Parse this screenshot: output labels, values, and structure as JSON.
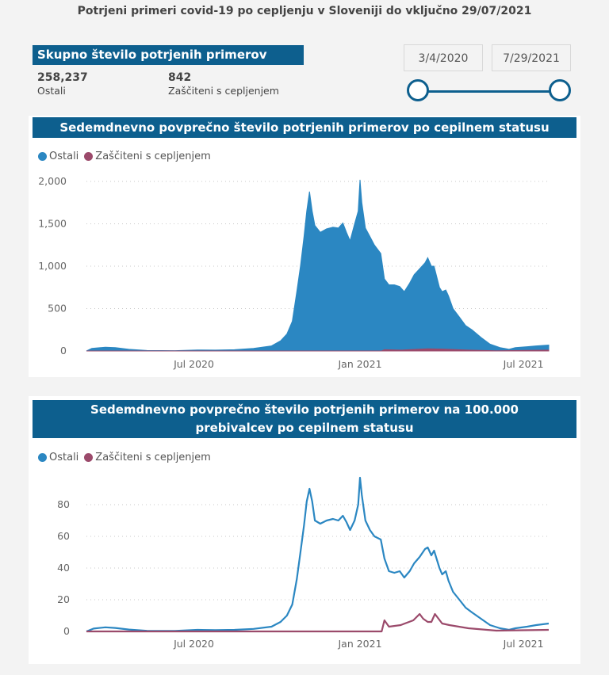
{
  "title": "Potrjeni primeri covid-19 po cepljenju v Sloveniji do vključno 29/07/2021",
  "kpis": {
    "header": "Skupno število potrjenih primerov",
    "ostali_value": "258,237",
    "ostali_label": "Ostali",
    "zasciteni_value": "842",
    "zasciteni_label": "Zaščiteni s cepljenjem"
  },
  "date_range": {
    "start": "3/4/2020",
    "end": "7/29/2021"
  },
  "colors": {
    "accent": "#0d5f8e",
    "ostali": "#2b87c2",
    "zasciteni": "#9b4a6b"
  },
  "legend": {
    "ostali": "Ostali",
    "zasciteni": "Zaščiteni s cepljenjem"
  },
  "chart_data": [
    {
      "type": "area",
      "title": "Sedemdnevno povprečno število potrjenih primerov po cepilnem statusu",
      "x_range": [
        "2020-03-04",
        "2021-07-29"
      ],
      "x_ticks": [
        "Jul 2020",
        "Jan 2021",
        "Jul 2021"
      ],
      "ylim": [
        0,
        2000
      ],
      "y_ticks": [
        "0",
        "500",
        "1,000",
        "1,500",
        "2,000"
      ],
      "y_tick_values": [
        0,
        500,
        1000,
        1500,
        2000
      ],
      "grid": true,
      "legend_position": "top-left",
      "series": [
        {
          "name": "Ostali",
          "points": [
            [
              "2020-03-04",
              0
            ],
            [
              "2020-03-10",
              30
            ],
            [
              "2020-03-25",
              45
            ],
            [
              "2020-04-05",
              40
            ],
            [
              "2020-04-20",
              20
            ],
            [
              "2020-05-10",
              6
            ],
            [
              "2020-06-10",
              4
            ],
            [
              "2020-07-05",
              12
            ],
            [
              "2020-07-25",
              10
            ],
            [
              "2020-08-15",
              15
            ],
            [
              "2020-09-05",
              30
            ],
            [
              "2020-09-25",
              60
            ],
            [
              "2020-10-05",
              120
            ],
            [
              "2020-10-12",
              200
            ],
            [
              "2020-10-18",
              350
            ],
            [
              "2020-10-23",
              700
            ],
            [
              "2020-10-27",
              1000
            ],
            [
              "2020-10-31",
              1350
            ],
            [
              "2020-11-03",
              1650
            ],
            [
              "2020-11-06",
              1880
            ],
            [
              "2020-11-09",
              1650
            ],
            [
              "2020-11-12",
              1480
            ],
            [
              "2020-11-18",
              1400
            ],
            [
              "2020-11-25",
              1440
            ],
            [
              "2020-12-02",
              1460
            ],
            [
              "2020-12-08",
              1450
            ],
            [
              "2020-12-13",
              1510
            ],
            [
              "2020-12-17",
              1400
            ],
            [
              "2020-12-21",
              1300
            ],
            [
              "2020-12-26",
              1500
            ],
            [
              "2020-12-30",
              1650
            ],
            [
              "2021-01-01",
              2020
            ],
            [
              "2021-01-03",
              1750
            ],
            [
              "2021-01-07",
              1450
            ],
            [
              "2021-01-12",
              1350
            ],
            [
              "2021-01-17",
              1250
            ],
            [
              "2021-01-24",
              1150
            ],
            [
              "2021-01-28",
              850
            ],
            [
              "2021-02-02",
              780
            ],
            [
              "2021-02-08",
              780
            ],
            [
              "2021-02-14",
              760
            ],
            [
              "2021-02-19",
              700
            ],
            [
              "2021-02-25",
              800
            ],
            [
              "2021-03-02",
              900
            ],
            [
              "2021-03-08",
              970
            ],
            [
              "2021-03-14",
              1040
            ],
            [
              "2021-03-17",
              1100
            ],
            [
              "2021-03-21",
              1000
            ],
            [
              "2021-03-24",
              1000
            ],
            [
              "2021-03-30",
              750
            ],
            [
              "2021-04-02",
              700
            ],
            [
              "2021-04-06",
              720
            ],
            [
              "2021-04-09",
              650
            ],
            [
              "2021-04-14",
              500
            ],
            [
              "2021-04-21",
              400
            ],
            [
              "2021-04-28",
              300
            ],
            [
              "2021-05-05",
              250
            ],
            [
              "2021-05-15",
              160
            ],
            [
              "2021-05-25",
              80
            ],
            [
              "2021-06-05",
              40
            ],
            [
              "2021-06-15",
              20
            ],
            [
              "2021-06-22",
              40
            ],
            [
              "2021-07-05",
              50
            ],
            [
              "2021-07-15",
              60
            ],
            [
              "2021-07-29",
              70
            ]
          ]
        },
        {
          "name": "Zaščiteni s cepljenjem",
          "points": [
            [
              "2020-03-04",
              0
            ],
            [
              "2021-01-25",
              0
            ],
            [
              "2021-01-28",
              15
            ],
            [
              "2021-02-15",
              10
            ],
            [
              "2021-03-17",
              25
            ],
            [
              "2021-04-02",
              22
            ],
            [
              "2021-05-01",
              10
            ],
            [
              "2021-06-01",
              2
            ],
            [
              "2021-07-29",
              10
            ]
          ]
        }
      ]
    },
    {
      "type": "line",
      "title": "Sedemdnevno povprečno število potrjenih primerov na 100.000 prebivalcev po cepilnem statusu",
      "x_range": [
        "2020-03-04",
        "2021-07-29"
      ],
      "x_ticks": [
        "Jul 2020",
        "Jan 2021",
        "Jul 2021"
      ],
      "ylim": [
        0,
        100
      ],
      "y_ticks": [
        "0",
        "20",
        "40",
        "60",
        "80"
      ],
      "y_tick_values": [
        0,
        20,
        40,
        60,
        80
      ],
      "grid": true,
      "legend_position": "top-left",
      "series": [
        {
          "name": "Ostali",
          "points": [
            [
              "2020-03-04",
              0
            ],
            [
              "2020-03-12",
              1.8
            ],
            [
              "2020-03-25",
              2.6
            ],
            [
              "2020-04-05",
              2.2
            ],
            [
              "2020-04-20",
              1.2
            ],
            [
              "2020-05-10",
              0.4
            ],
            [
              "2020-06-10",
              0.3
            ],
            [
              "2020-07-05",
              1.0
            ],
            [
              "2020-07-25",
              0.8
            ],
            [
              "2020-08-15",
              1.0
            ],
            [
              "2020-09-05",
              1.6
            ],
            [
              "2020-09-25",
              3
            ],
            [
              "2020-10-05",
              6
            ],
            [
              "2020-10-12",
              10
            ],
            [
              "2020-10-18",
              17
            ],
            [
              "2020-10-23",
              33
            ],
            [
              "2020-10-27",
              50
            ],
            [
              "2020-10-31",
              67
            ],
            [
              "2020-11-03",
              82
            ],
            [
              "2020-11-06",
              90
            ],
            [
              "2020-11-09",
              82
            ],
            [
              "2020-11-12",
              70
            ],
            [
              "2020-11-18",
              68
            ],
            [
              "2020-11-25",
              70
            ],
            [
              "2020-12-02",
              71
            ],
            [
              "2020-12-08",
              70
            ],
            [
              "2020-12-13",
              73
            ],
            [
              "2020-12-17",
              69
            ],
            [
              "2020-12-21",
              64
            ],
            [
              "2020-12-26",
              70
            ],
            [
              "2020-12-30",
              80
            ],
            [
              "2021-01-01",
              97
            ],
            [
              "2021-01-03",
              86
            ],
            [
              "2021-01-07",
              70
            ],
            [
              "2021-01-12",
              64
            ],
            [
              "2021-01-17",
              60
            ],
            [
              "2021-01-24",
              58
            ],
            [
              "2021-01-28",
              46
            ],
            [
              "2021-02-02",
              38
            ],
            [
              "2021-02-08",
              37
            ],
            [
              "2021-02-14",
              38
            ],
            [
              "2021-02-19",
              34
            ],
            [
              "2021-02-25",
              38
            ],
            [
              "2021-03-02",
              43
            ],
            [
              "2021-03-08",
              47
            ],
            [
              "2021-03-14",
              52
            ],
            [
              "2021-03-17",
              53
            ],
            [
              "2021-03-21",
              48
            ],
            [
              "2021-03-24",
              51
            ],
            [
              "2021-03-30",
              40
            ],
            [
              "2021-04-02",
              36
            ],
            [
              "2021-04-06",
              38
            ],
            [
              "2021-04-09",
              32
            ],
            [
              "2021-04-14",
              25
            ],
            [
              "2021-04-21",
              20
            ],
            [
              "2021-04-28",
              15
            ],
            [
              "2021-05-05",
              12
            ],
            [
              "2021-05-15",
              8
            ],
            [
              "2021-05-25",
              4
            ],
            [
              "2021-06-05",
              2
            ],
            [
              "2021-06-15",
              1
            ],
            [
              "2021-06-22",
              2
            ],
            [
              "2021-07-05",
              3
            ],
            [
              "2021-07-15",
              4
            ],
            [
              "2021-07-29",
              5
            ]
          ]
        },
        {
          "name": "Zaščiteni s cepljenjem",
          "points": [
            [
              "2020-03-04",
              0
            ],
            [
              "2021-01-25",
              0
            ],
            [
              "2021-01-28",
              7
            ],
            [
              "2021-02-02",
              3
            ],
            [
              "2021-02-15",
              4
            ],
            [
              "2021-03-01",
              7
            ],
            [
              "2021-03-08",
              11
            ],
            [
              "2021-03-12",
              8
            ],
            [
              "2021-03-17",
              6
            ],
            [
              "2021-03-21",
              6
            ],
            [
              "2021-03-25",
              11
            ],
            [
              "2021-04-02",
              5
            ],
            [
              "2021-04-10",
              4
            ],
            [
              "2021-05-01",
              2
            ],
            [
              "2021-06-01",
              0.5
            ],
            [
              "2021-07-29",
              1
            ]
          ]
        }
      ]
    }
  ]
}
